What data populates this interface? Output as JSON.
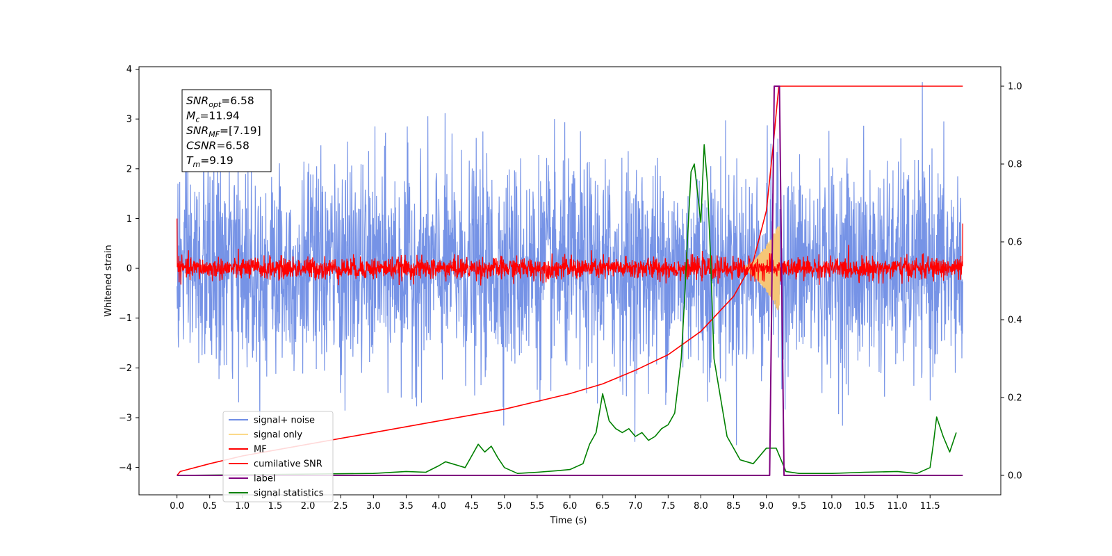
{
  "chart_data": {
    "type": "line",
    "xlabel": "Time (s)",
    "ylabel": "Whitened strain",
    "xlim": [
      -0.58,
      12.58
    ],
    "ylim": [
      -4.55,
      4.05
    ],
    "ylim_right": [
      -0.05,
      1.05
    ],
    "x_ticks": [
      "0.0",
      "0.5",
      "1.0",
      "1.5",
      "2.0",
      "2.5",
      "3.0",
      "3.5",
      "4.0",
      "4.5",
      "5.0",
      "5.5",
      "6.0",
      "6.5",
      "7.0",
      "7.5",
      "8.0",
      "8.5",
      "9.0",
      "9.5",
      "10.0",
      "10.5",
      "11.0",
      "11.5"
    ],
    "y_ticks_left": [
      "4",
      "3",
      "2",
      "1",
      "0",
      "−1",
      "−2",
      "−3",
      "−4"
    ],
    "y_ticks_right": [
      "1.0",
      "0.8",
      "0.6",
      "0.4",
      "0.2",
      "0.0"
    ],
    "legend": {
      "placement": "lower-left",
      "entries": [
        {
          "label": "signal+ noise",
          "color": "#6f8de5"
        },
        {
          "label": "signal only",
          "color": "#fbd98a"
        },
        {
          "label": "MF",
          "color": "#ff0000"
        },
        {
          "label": "cumilative SNR",
          "color": "#ff0000"
        },
        {
          "label": "label",
          "color": "#800080"
        },
        {
          "label": "signal statistics",
          "color": "#008000"
        }
      ]
    },
    "info_box": [
      {
        "base": "SNR",
        "sub": "opt",
        "value": "=6.58"
      },
      {
        "base": "M",
        "sub": "c",
        "value": "=11.94"
      },
      {
        "base": "SNR",
        "sub": "MF",
        "value": "=[7.19]"
      },
      {
        "base": "CSNR",
        "sub": "",
        "value": "=6.58"
      },
      {
        "base": "T",
        "sub": "m",
        "value": "=9.19"
      }
    ],
    "series": [
      {
        "name": "signal+ noise",
        "axis": "left",
        "color": "#6f8de5",
        "time_range": [
          0.0,
          12.0
        ],
        "amplitude_sigma": 1.05
      },
      {
        "name": "signal only",
        "axis": "left",
        "color": "#f5c577",
        "time_range": [
          8.6,
          9.2
        ],
        "peak_amplitude": 0.9
      },
      {
        "name": "MF",
        "axis": "left",
        "color": "#ff0000",
        "time_range": [
          0.0,
          12.0
        ],
        "amplitude_sigma": 0.11
      },
      {
        "name": "cumilative SNR",
        "axis": "right",
        "x": [
          0.0,
          0.05,
          0.5,
          1.0,
          2.0,
          3.0,
          4.0,
          5.0,
          6.0,
          6.5,
          7.0,
          7.5,
          8.0,
          8.5,
          8.8,
          9.0,
          9.1,
          9.15,
          9.19,
          10.0,
          11.0,
          12.0
        ],
        "y": [
          0.0,
          0.01,
          0.03,
          0.05,
          0.08,
          0.11,
          0.14,
          0.17,
          0.21,
          0.235,
          0.27,
          0.31,
          0.37,
          0.46,
          0.55,
          0.68,
          0.84,
          0.93,
          1.0,
          1.0,
          1.0,
          1.0
        ]
      },
      {
        "name": "label",
        "axis": "right",
        "x": [
          0.0,
          9.05,
          9.12,
          9.2,
          9.27,
          12.0
        ],
        "y": [
          0.0,
          0.0,
          1.0,
          1.0,
          0.0,
          0.0
        ]
      },
      {
        "name": "signal statistics",
        "axis": "right",
        "x": [
          0.0,
          3.0,
          3.5,
          3.8,
          4.0,
          4.1,
          4.2,
          4.3,
          4.4,
          4.5,
          4.6,
          4.7,
          4.8,
          4.9,
          5.0,
          5.2,
          5.5,
          5.8,
          6.0,
          6.2,
          6.3,
          6.4,
          6.5,
          6.6,
          6.7,
          6.8,
          6.9,
          7.0,
          7.1,
          7.2,
          7.3,
          7.4,
          7.5,
          7.6,
          7.7,
          7.75,
          7.8,
          7.85,
          7.9,
          8.0,
          8.05,
          8.1,
          8.15,
          8.2,
          8.3,
          8.4,
          8.6,
          8.8,
          9.0,
          9.15,
          9.3,
          9.5,
          10.0,
          10.5,
          11.0,
          11.3,
          11.5,
          11.55,
          11.6,
          11.7,
          11.8,
          11.9
        ],
        "y": [
          0.0,
          0.005,
          0.01,
          0.008,
          0.025,
          0.035,
          0.03,
          0.025,
          0.02,
          0.05,
          0.08,
          0.06,
          0.075,
          0.045,
          0.02,
          0.005,
          0.008,
          0.012,
          0.015,
          0.03,
          0.08,
          0.11,
          0.21,
          0.14,
          0.12,
          0.11,
          0.12,
          0.1,
          0.11,
          0.09,
          0.1,
          0.12,
          0.13,
          0.16,
          0.3,
          0.45,
          0.62,
          0.78,
          0.8,
          0.65,
          0.85,
          0.75,
          0.55,
          0.3,
          0.2,
          0.1,
          0.04,
          0.03,
          0.07,
          0.07,
          0.01,
          0.005,
          0.005,
          0.008,
          0.01,
          0.005,
          0.02,
          0.08,
          0.15,
          0.1,
          0.06,
          0.11
        ]
      }
    ]
  }
}
